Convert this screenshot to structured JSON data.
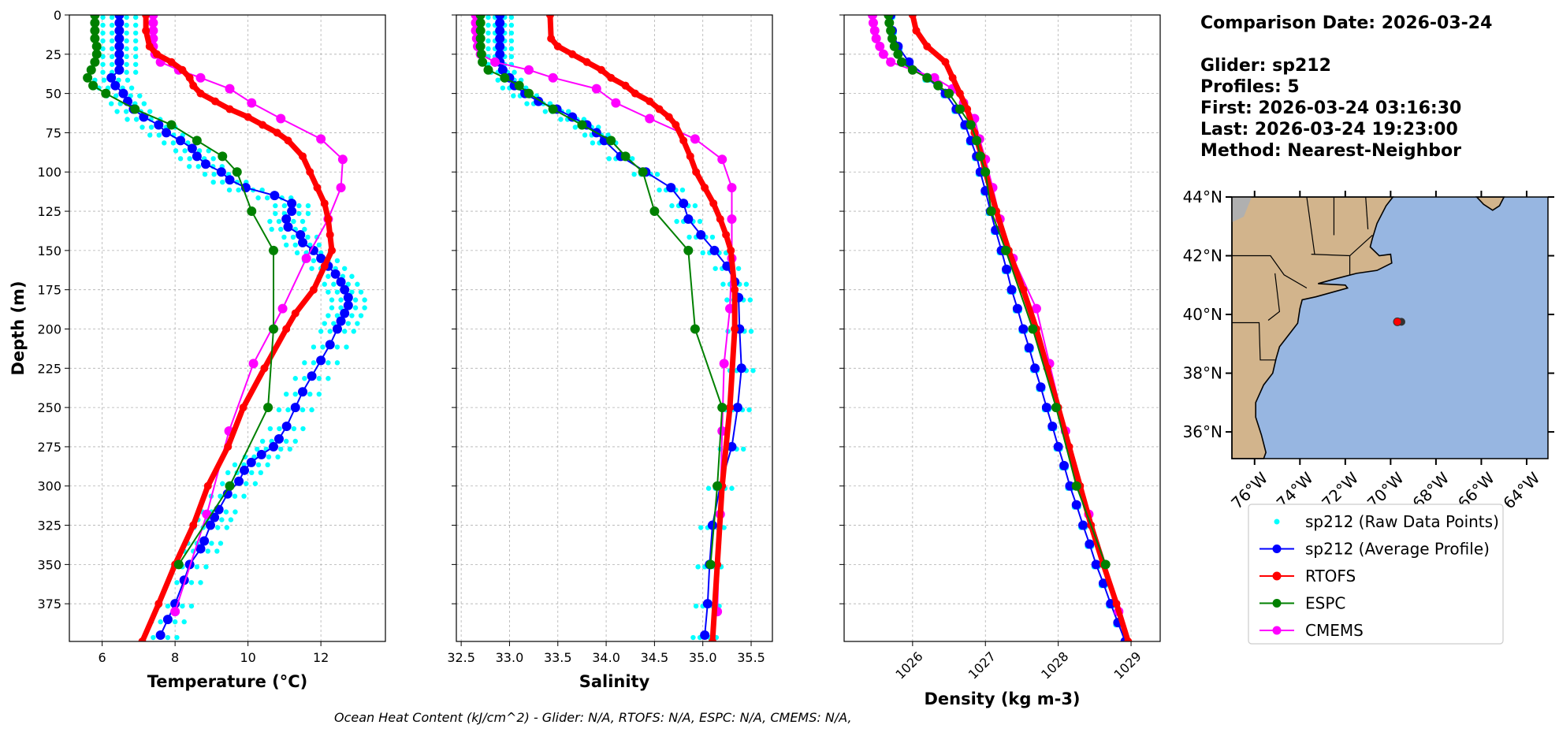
{
  "info": {
    "comparison_date": "Comparison Date: 2026-03-24",
    "glider": "Glider: sp212",
    "profiles": "Profiles: 5",
    "first": "First: 2026-03-24 03:16:30",
    "last": "Last: 2026-03-24 19:23:00",
    "method": "Method: Nearest-Neighbor"
  },
  "ohc_text": "Ocean Heat Content (kJ/cm^2) - Glider: N/A,  RTOFS: N/A,  ESPC: N/A,  CMEMS: N/A,",
  "legend": [
    {
      "label": "sp212 (Raw Data Points)",
      "color": "#00ffff"
    },
    {
      "label": "sp212 (Average Profile)",
      "color": "#0000ff"
    },
    {
      "label": "RTOFS",
      "color": "#ff0000"
    },
    {
      "label": "ESPC",
      "color": "#008000"
    },
    {
      "label": "CMEMS",
      "color": "#ff00ff"
    }
  ],
  "map": {
    "lon_range": [
      -77.0,
      -63.06
    ],
    "lat_range": [
      35.09,
      44.0
    ],
    "lat_ticks": [
      {
        "v": 36,
        "label": "36°N"
      },
      {
        "v": 38,
        "label": "38°N"
      },
      {
        "v": 40,
        "label": "40°N"
      },
      {
        "v": 42,
        "label": "42°N"
      },
      {
        "v": 44,
        "label": "44°N"
      }
    ],
    "lon_ticks": [
      {
        "v": -76,
        "label": "76°W"
      },
      {
        "v": -74,
        "label": "74°W"
      },
      {
        "v": -72,
        "label": "72°W"
      },
      {
        "v": -70,
        "label": "70°W"
      },
      {
        "v": -68,
        "label": "68°W"
      },
      {
        "v": -66,
        "label": "66°W"
      },
      {
        "v": -64,
        "label": "64°W"
      }
    ],
    "glider_position": {
      "lon": -69.7,
      "lat": 39.75
    },
    "land_color": "#d2b48c",
    "ocean_color": "#97b6e1",
    "land": [
      [
        -77,
        44
      ],
      [
        -69.9,
        44
      ],
      [
        -70.2,
        43.7
      ],
      [
        -70.6,
        43.1
      ],
      [
        -70.8,
        42.6
      ],
      [
        -70.9,
        42.3
      ],
      [
        -70.5,
        42.0
      ],
      [
        -70.0,
        42.05
      ],
      [
        -69.95,
        41.75
      ],
      [
        -70.6,
        41.5
      ],
      [
        -71.5,
        41.4
      ],
      [
        -72.5,
        41.2
      ],
      [
        -73.2,
        41.05
      ],
      [
        -72.0,
        41.0
      ],
      [
        -71.9,
        40.9
      ],
      [
        -73.3,
        40.6
      ],
      [
        -73.9,
        40.5
      ],
      [
        -74.0,
        40.2
      ],
      [
        -74.1,
        39.7
      ],
      [
        -74.5,
        39.3
      ],
      [
        -74.9,
        38.9
      ],
      [
        -75.05,
        38.5
      ],
      [
        -75.2,
        38.0
      ],
      [
        -75.6,
        37.6
      ],
      [
        -75.95,
        37.0
      ],
      [
        -75.95,
        36.5
      ],
      [
        -75.7,
        35.9
      ],
      [
        -75.5,
        35.3
      ],
      [
        -75.6,
        35.09
      ],
      [
        -77,
        35.09
      ]
    ],
    "land2": [
      [
        -66.2,
        44
      ],
      [
        -65.0,
        44
      ],
      [
        -65.2,
        43.7
      ],
      [
        -65.5,
        43.55
      ],
      [
        -65.9,
        43.75
      ]
    ]
  },
  "chart_data": [
    {
      "type": "line",
      "xlabel": "Temperature (°C)",
      "ylabel": "Depth (m)",
      "xlim": [
        5.1,
        13.77
      ],
      "ylim": [
        399,
        0
      ],
      "xticks": [
        6,
        8,
        10,
        12
      ],
      "yticks": [
        0,
        25,
        50,
        75,
        100,
        125,
        150,
        175,
        200,
        225,
        250,
        275,
        300,
        325,
        350,
        375
      ],
      "grid": true,
      "raw_offsets": [
        -0.45,
        -0.2,
        0.2,
        0.45
      ],
      "series": [
        {
          "name": "sp212 (Average Profile)",
          "depth": [
            0,
            5,
            10,
            15,
            20,
            25,
            30,
            35,
            40,
            45,
            50,
            55,
            60,
            65,
            70,
            75,
            80,
            85,
            90,
            95,
            100,
            105,
            110,
            115,
            120,
            125,
            130,
            135,
            140,
            145,
            150,
            155,
            160,
            165,
            170,
            175,
            180,
            185,
            190,
            195,
            200,
            210,
            220,
            230,
            240,
            250,
            262,
            270,
            275,
            280,
            285,
            290,
            297,
            305,
            315,
            320,
            325,
            335,
            340,
            350,
            360,
            375,
            385,
            395
          ],
          "values": [
            6.47,
            6.47,
            6.47,
            6.47,
            6.47,
            6.47,
            6.47,
            6.47,
            6.25,
            6.36,
            6.58,
            6.7,
            6.86,
            7.14,
            7.55,
            7.76,
            8.15,
            8.47,
            8.6,
            8.84,
            9.27,
            9.5,
            9.94,
            10.73,
            11.2,
            11.2,
            11.05,
            11.1,
            11.44,
            11.5,
            11.8,
            12.0,
            12.2,
            12.4,
            12.55,
            12.65,
            12.75,
            12.75,
            12.65,
            12.55,
            12.45,
            12.25,
            12.0,
            11.75,
            11.5,
            11.3,
            11.06,
            10.85,
            10.7,
            10.37,
            10.09,
            9.9,
            9.75,
            9.44,
            9.2,
            9.08,
            8.97,
            8.8,
            8.7,
            8.4,
            8.25,
            8.0,
            7.8,
            7.6
          ]
        },
        {
          "name": "RTOFS",
          "depth": [
            0,
            10,
            20,
            25,
            30,
            35,
            40,
            45,
            50,
            55,
            60,
            65,
            70,
            75,
            80,
            90,
            100,
            110,
            120,
            130,
            140,
            150,
            160,
            175,
            190,
            200,
            225,
            250,
            275,
            300,
            325,
            350,
            375,
            399
          ],
          "values": [
            7.2,
            7.2,
            7.3,
            7.5,
            7.9,
            8.2,
            8.4,
            8.5,
            8.7,
            9.1,
            9.5,
            10.0,
            10.4,
            10.8,
            11.1,
            11.5,
            11.7,
            11.9,
            12.1,
            12.2,
            12.25,
            12.3,
            12.1,
            11.8,
            11.3,
            11.05,
            10.45,
            9.87,
            9.45,
            8.9,
            8.5,
            8.0,
            7.55,
            7.1
          ]
        },
        {
          "name": "ESPC",
          "depth": [
            0,
            5,
            10,
            15,
            20,
            25,
            30,
            35,
            40,
            45,
            50,
            60,
            70,
            80,
            90,
            100,
            125,
            150,
            200,
            250,
            300,
            350
          ],
          "values": [
            5.8,
            5.8,
            5.8,
            5.8,
            5.85,
            5.85,
            5.8,
            5.7,
            5.6,
            5.75,
            6.1,
            6.9,
            7.9,
            8.6,
            9.3,
            9.7,
            10.1,
            10.7,
            10.7,
            10.55,
            9.5,
            8.1
          ]
        },
        {
          "name": "CMEMS",
          "depth": [
            0,
            5,
            10,
            15,
            20,
            25,
            30,
            35,
            40,
            47,
            56,
            66,
            79,
            92,
            110,
            130,
            155,
            187,
            222,
            265,
            318,
            380
          ],
          "values": [
            7.4,
            7.4,
            7.4,
            7.4,
            7.4,
            7.45,
            7.6,
            8.1,
            8.7,
            9.5,
            10.1,
            10.9,
            12.0,
            12.6,
            12.55,
            12.2,
            11.6,
            10.95,
            10.15,
            9.48,
            8.87,
            8.0
          ]
        }
      ]
    },
    {
      "type": "line",
      "xlabel": "Salinity",
      "ylabel": "",
      "xlim": [
        32.45,
        35.72
      ],
      "ylim": [
        399,
        0
      ],
      "xticks": [
        32.5,
        33.0,
        33.5,
        34.0,
        34.5,
        35.0,
        35.5
      ],
      "yticks": [
        0,
        25,
        50,
        75,
        100,
        125,
        150,
        175,
        200,
        225,
        250,
        275,
        300,
        325,
        350,
        375
      ],
      "grid": true,
      "raw_offsets": [
        -0.12,
        -0.05,
        0.05,
        0.12
      ],
      "series": [
        {
          "name": "sp212 (Average Profile)",
          "depth": [
            0,
            5,
            10,
            15,
            20,
            25,
            30,
            35,
            40,
            45,
            50,
            55,
            60,
            65,
            70,
            75,
            80,
            90,
            100,
            110,
            120,
            130,
            140,
            150,
            160,
            170,
            180,
            200,
            225,
            250,
            275,
            300,
            325,
            350,
            375,
            395
          ],
          "values": [
            32.9,
            32.9,
            32.9,
            32.9,
            32.9,
            32.9,
            32.9,
            32.93,
            33.0,
            33.05,
            33.16,
            33.3,
            33.49,
            33.65,
            33.8,
            33.9,
            33.98,
            34.15,
            34.41,
            34.67,
            34.8,
            34.85,
            34.98,
            35.12,
            35.25,
            35.33,
            35.37,
            35.38,
            35.4,
            35.36,
            35.3,
            35.18,
            35.1,
            35.07,
            35.05,
            35.02
          ]
        },
        {
          "name": "RTOFS",
          "depth": [
            0,
            15,
            20,
            25,
            30,
            35,
            40,
            45,
            50,
            55,
            60,
            65,
            70,
            80,
            90,
            100,
            110,
            120,
            130,
            140,
            150,
            175,
            200,
            250,
            300,
            350,
            399
          ],
          "values": [
            33.42,
            33.43,
            33.5,
            33.65,
            33.8,
            33.95,
            34.05,
            34.2,
            34.3,
            34.45,
            34.55,
            34.65,
            34.72,
            34.8,
            34.87,
            34.93,
            35.02,
            35.11,
            35.18,
            35.24,
            35.29,
            35.33,
            35.33,
            35.28,
            35.2,
            35.15,
            35.1
          ]
        },
        {
          "name": "ESPC",
          "depth": [
            0,
            5,
            10,
            15,
            20,
            25,
            30,
            35,
            40,
            45,
            50,
            60,
            70,
            80,
            90,
            100,
            125,
            150,
            200,
            250,
            300,
            350
          ],
          "values": [
            32.7,
            32.7,
            32.7,
            32.7,
            32.7,
            32.71,
            32.72,
            32.78,
            32.95,
            33.1,
            33.2,
            33.45,
            33.75,
            34.05,
            34.2,
            34.38,
            34.5,
            34.85,
            34.92,
            35.2,
            35.15,
            35.08
          ]
        },
        {
          "name": "CMEMS",
          "depth": [
            0,
            5,
            10,
            15,
            20,
            25,
            30,
            35,
            40,
            47,
            56,
            66,
            79,
            92,
            110,
            130,
            155,
            187,
            222,
            265,
            318,
            380
          ],
          "values": [
            32.65,
            32.65,
            32.65,
            32.66,
            32.67,
            32.7,
            32.85,
            33.2,
            33.45,
            33.9,
            34.1,
            34.45,
            34.92,
            35.2,
            35.3,
            35.3,
            35.3,
            35.28,
            35.22,
            35.2,
            35.18,
            35.15
          ]
        }
      ]
    },
    {
      "type": "line",
      "xlabel": "Density (kg m-3)",
      "ylabel": "",
      "xlim": [
        1025.06,
        1029.4
      ],
      "ylim": [
        399,
        0
      ],
      "xticks": [
        1026,
        1027,
        1028,
        1029
      ],
      "yticks": [
        0,
        25,
        50,
        75,
        100,
        125,
        150,
        175,
        200,
        225,
        250,
        275,
        300,
        325,
        350,
        375
      ],
      "grid": true,
      "raw_offsets": [
        -0.03,
        0.03
      ],
      "series": [
        {
          "name": "sp212 (Average Profile)",
          "depth": [
            0,
            10,
            20,
            30,
            40,
            50,
            60,
            70,
            80,
            90,
            100,
            112,
            125,
            137,
            150,
            162,
            175,
            187,
            200,
            212,
            225,
            237,
            250,
            262,
            275,
            287,
            300,
            312,
            325,
            337,
            350,
            362,
            375,
            387,
            399
          ],
          "values": [
            1025.7,
            1025.72,
            1025.8,
            1025.95,
            1026.2,
            1026.45,
            1026.6,
            1026.72,
            1026.8,
            1026.88,
            1026.93,
            1027.0,
            1027.07,
            1027.14,
            1027.22,
            1027.29,
            1027.36,
            1027.44,
            1027.52,
            1027.6,
            1027.68,
            1027.76,
            1027.84,
            1027.92,
            1028.0,
            1028.08,
            1028.16,
            1028.25,
            1028.34,
            1028.43,
            1028.52,
            1028.62,
            1028.72,
            1028.82,
            1028.92
          ]
        },
        {
          "name": "RTOFS",
          "depth": [
            0,
            10,
            20,
            30,
            40,
            50,
            60,
            75,
            90,
            100,
            125,
            150,
            175,
            200,
            225,
            250,
            275,
            300,
            325,
            350,
            375,
            399
          ],
          "values": [
            1026.0,
            1026.05,
            1026.2,
            1026.45,
            1026.55,
            1026.65,
            1026.75,
            1026.85,
            1026.95,
            1027.0,
            1027.15,
            1027.32,
            1027.52,
            1027.7,
            1027.85,
            1028.0,
            1028.15,
            1028.3,
            1028.45,
            1028.62,
            1028.8,
            1028.96
          ]
        },
        {
          "name": "ESPC",
          "depth": [
            0,
            5,
            10,
            15,
            20,
            25,
            30,
            35,
            40,
            45,
            50,
            60,
            70,
            80,
            90,
            100,
            125,
            150,
            200,
            250,
            300,
            350
          ],
          "values": [
            1025.67,
            1025.68,
            1025.7,
            1025.72,
            1025.75,
            1025.8,
            1025.85,
            1026.0,
            1026.2,
            1026.35,
            1026.5,
            1026.65,
            1026.8,
            1026.88,
            1026.93,
            1027.0,
            1027.08,
            1027.28,
            1027.65,
            1027.97,
            1028.25,
            1028.65
          ]
        },
        {
          "name": "CMEMS",
          "depth": [
            0,
            5,
            10,
            15,
            20,
            25,
            30,
            35,
            40,
            47,
            56,
            66,
            79,
            92,
            110,
            130,
            155,
            187,
            222,
            265,
            318,
            380
          ],
          "values": [
            1025.45,
            1025.46,
            1025.48,
            1025.5,
            1025.55,
            1025.6,
            1025.7,
            1026.0,
            1026.3,
            1026.55,
            1026.7,
            1026.85,
            1026.92,
            1027.0,
            1027.1,
            1027.2,
            1027.38,
            1027.7,
            1027.88,
            1028.1,
            1028.42,
            1028.83
          ]
        }
      ]
    }
  ]
}
